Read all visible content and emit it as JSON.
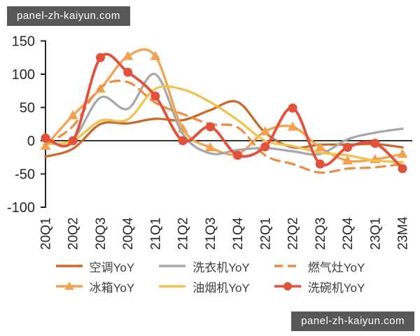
{
  "watermark": {
    "text": "panel-zh-kaiyun.com"
  },
  "chart_data": {
    "type": "line",
    "title": "",
    "categories": [
      "20Q1",
      "20Q2",
      "20Q3",
      "20Q4",
      "21Q1",
      "21Q2",
      "21Q3",
      "21Q4",
      "22Q1",
      "22Q2",
      "22Q3",
      "22Q4",
      "23Q1",
      "23M4"
    ],
    "series": [
      {
        "name": "空调YoY",
        "color": "#C9692B",
        "line": "solid",
        "marker": "none",
        "values": [
          -24,
          -12,
          25,
          26,
          33,
          31,
          46,
          58,
          12,
          -10,
          -6,
          -6,
          -5,
          -10
        ]
      },
      {
        "name": "冰箱YoY",
        "color": "#F2A24E",
        "line": "solid",
        "marker": "triangle",
        "values": [
          -8,
          38,
          78,
          127,
          127,
          18,
          -10,
          -20,
          14,
          21,
          -10,
          -30,
          -28,
          -20
        ]
      },
      {
        "name": "洗衣机YoY",
        "color": "#A8A8A8",
        "line": "solid",
        "marker": "none",
        "values": [
          -3,
          2,
          65,
          48,
          100,
          10,
          -19,
          -14,
          -11,
          -16,
          -20,
          2,
          12,
          18
        ]
      },
      {
        "name": "油烟机YoY",
        "color": "#F0C24F",
        "line": "solid",
        "marker": "none",
        "values": [
          -5,
          0,
          30,
          32,
          78,
          77,
          58,
          31,
          0,
          -8,
          -18,
          -22,
          -30,
          -32
        ]
      },
      {
        "name": "燃气灶YoY",
        "color": "#E98F47",
        "line": "dashed",
        "marker": "none",
        "values": [
          -6,
          22,
          80,
          88,
          57,
          40,
          25,
          20,
          -22,
          -35,
          -48,
          -42,
          -40,
          -35
        ]
      },
      {
        "name": "洗碗机YoY",
        "color": "#E2503C",
        "line": "solid",
        "marker": "circle",
        "values": [
          4,
          0,
          125,
          103,
          67,
          0,
          21,
          -22,
          -9,
          49,
          -35,
          -10,
          -4,
          -42
        ]
      }
    ],
    "ylim": [
      -100,
      150
    ],
    "yticks": [
      150,
      100,
      50,
      0,
      -50,
      -100
    ],
    "grid": false,
    "zero_line": true,
    "legend_position": "bottom",
    "legend_rows": [
      [
        "空调YoY",
        "洗衣机YoY",
        "燃气灶YoY"
      ],
      [
        "冰箱YoY",
        "油烟机YoY",
        "洗碗机YoY"
      ]
    ],
    "axis_color": "#262626"
  }
}
